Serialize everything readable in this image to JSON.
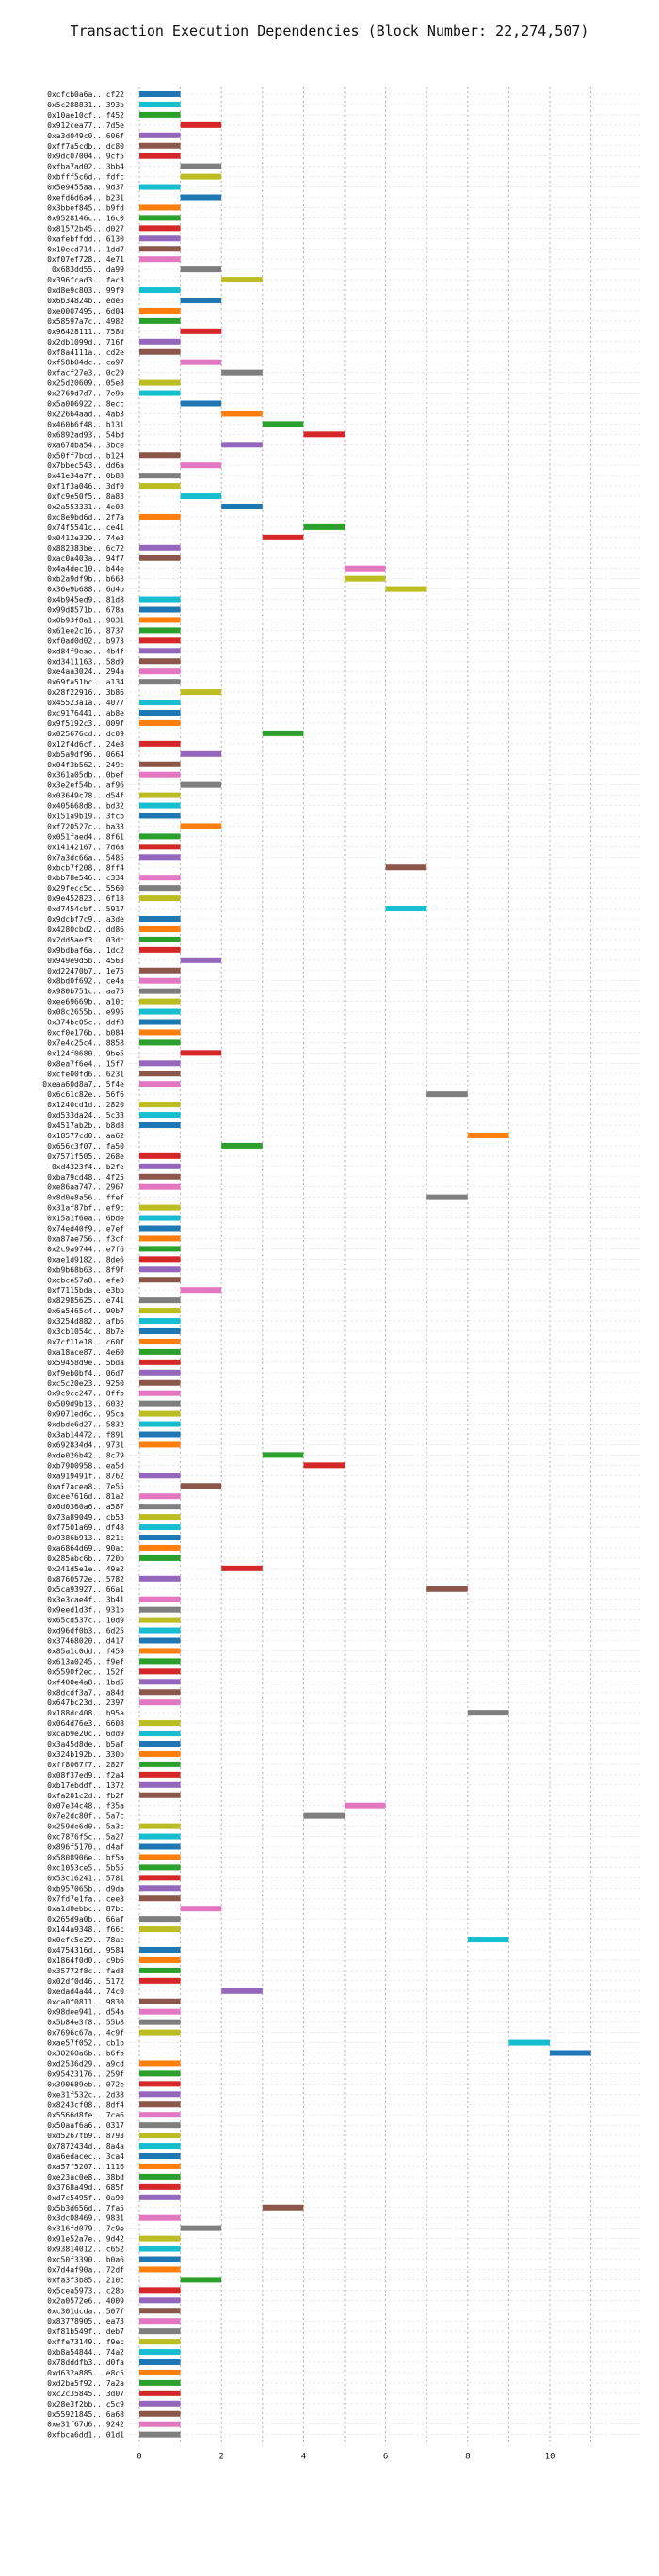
{
  "chart_data": {
    "type": "bar",
    "orientation": "horizontal",
    "title": "Transaction Execution Dependencies (Block Number: 22,274,507)",
    "xlabel": "",
    "ylabel": "",
    "xlim": [
      0,
      12
    ],
    "xticks": [
      0,
      2,
      4,
      6,
      8,
      10
    ],
    "grid": "vertical-dashed",
    "bar_width": 1,
    "palette": [
      "#1f77b4",
      "#ff7f0e",
      "#2ca02c",
      "#d62728",
      "#9467bd",
      "#8c564b",
      "#e377c2",
      "#7f7f7f",
      "#bcbd22",
      "#17becf"
    ],
    "labels": [
      "0xcfcb0a6a...cf22",
      "0x5c288831...393b",
      "0x10ae10cf...f452",
      "0x912cea77...7d5e",
      "0xa3d049c0...606f",
      "0xff7a5cdb...dc80",
      "0x9dc07004...9cf5",
      "0xfba7ad02...3bb4",
      "0xbfff5c6d...fdfc",
      "0x5e9455aa...9d37",
      "0xefd6d6a4...b231",
      "0x3bbef845...b9fd",
      "0x9528146c...16c0",
      "0x81572b45...d027",
      "0xafebffdd...6130",
      "0x10ecd714...1dd7",
      "0xf07ef728...4e71",
      "0x683dd55...da99",
      "0x396fcad3...fac3",
      "0xd8e9c803...99f9",
      "0x6b34824b...ede5",
      "0xe0007495...6d04",
      "0x58597a7c...4982",
      "0x96428111...758d",
      "0x2db1099d...716f",
      "0xf8a4111a...cd2e",
      "0xf58b04dc...ca97",
      "0xfacf27e3...0c29",
      "0x25d20609...05e8",
      "0x2769d7d7...7e9b",
      "0x5a006922...8ecc",
      "0x22664aad...4ab3",
      "0x460b6f48...b131",
      "0x6892ad93...54bd",
      "0xa67dba54...3bce",
      "0x50ff7bcd...b124",
      "0x7bbec543...dd6a",
      "0x41e34a7f...0b88",
      "0xf1f3a046...3df0",
      "0xfc9e50f5...8a83",
      "0x2a553331...4e03",
      "0xc8e9bd6d...2f7a",
      "0x74f5541c...ce41",
      "0x0412e329...74e3",
      "0x882383be...6c72",
      "0xac0a403a...94f7",
      "0x4a4dec10...b44e",
      "0xb2a9df9b...b663",
      "0x30e9b688...6d4b",
      "0x4b945ed9...81d8",
      "0x99d8571b...678a",
      "0x0b93f8a1...9031",
      "0x61ee2c16...8737",
      "0xf0ad0d02...b973",
      "0xd84f9eae...4b4f",
      "0xd3411163...58d9",
      "0xe4aa3024...294a",
      "0x69fa51bc...a134",
      "0x28f22916...3b86",
      "0x45523a1a...4077",
      "0xc9176441...ab8e",
      "0x9f5192c3...009f",
      "0x025676cd...dc09",
      "0x12f4d6cf...24e8",
      "0xb5a9df96...0664",
      "0x04f3b562...249c",
      "0x361a05db...0bef",
      "0x3e2ef54b...af96",
      "0x03649c78...d54f",
      "0x405668d8...bd32",
      "0x151a9b19...3fcb",
      "0xf720527c...ba33",
      "0x051faed4...8f61",
      "0x14142167...7d6a",
      "0x7a3dc66a...5485",
      "0xbcb7f208...8ff4",
      "0xbb78e546...c334",
      "0x29fecc5c...5560",
      "0x9e452823...6f18",
      "0xd7454cbf...5917",
      "0x9dcbf7c9...a3de",
      "0x4280cbd2...dd86",
      "0x2dd5aef3...03dc",
      "0x9bdbaf6a...1dc2",
      "0x949e9d5b...4563",
      "0xd22470b7...1e75",
      "0x8bd0f692...ce4a",
      "0x980b751c...aa75",
      "0xee69669b...a10c",
      "0x08c2655b...e995",
      "0x374bc05c...ddf8",
      "0xcf0e176b...b084",
      "0x7e4c25c4...8858",
      "0x124f0680...9be5",
      "0x8ea7f6e4...15f7",
      "0xcfe00fd6...6231",
      "0xeaa60d8a7...5f4e",
      "0x6c61c82e...56f6",
      "0x1240cd1d...2820",
      "0xd533da24...5c33",
      "0x4517ab2b...b8d8",
      "0x18577cd0...aa62",
      "0x656c3f07...fa50",
      "0x7571f505...268e",
      "0xd4323f4...b2fe",
      "0xba79cd48...4f25",
      "0xe86aa747...2967",
      "0x8d0e8a56...ffef",
      "0x31af87bf...ef9c",
      "0x15a1f6ea...6bde",
      "0x74ed40f9...e7ef",
      "0xa87ae756...f3cf",
      "0x2c9a9744...e7f6",
      "0xae1d9182...8de6",
      "0xb9b68b63...8f9f",
      "0xcbce57a8...efe0",
      "0xf7115bda...e3bb",
      "0x82985625...e741",
      "0x6a5465c4...90b7",
      "0x3254d882...afb6",
      "0x3cb1054c...8b7e",
      "0x7cf11e18...c60f",
      "0xa18ace87...4e60",
      "0x59458d9e...5bda",
      "0xf9eb0bf4...06d7",
      "0xc5c20e23...9250",
      "0x9c9cc247...8ffb",
      "0x509d9b13...6032",
      "0x9071ed6c...95ca",
      "0xdbde6d27...5832",
      "0x3ab14472...f891",
      "0x692834d4...9731",
      "0xde026b42...8c79",
      "0xb7900958...ea5d",
      "0xa919491f...8762",
      "0xaf7acea8...7e55",
      "0xcee7616d...81a2",
      "0x0d0360a6...a587",
      "0x73a89049...cb53",
      "0xf7501a69...df48",
      "0x9386b913...821c",
      "0xa6864d69...90ac",
      "0x285abc6b...720b",
      "0x241d5e1e...49a2",
      "0x8760572e...5782",
      "0x5ca93927...66a1",
      "0x3e3cae4f...3b41",
      "0x9eed1d3f...931b",
      "0x65cd537c...10d9",
      "0xd96df0b3...6d25",
      "0x37468020...d417",
      "0x85a1c0dd...f459",
      "0x613a0245...f9ef",
      "0x5590f2ec...152f",
      "0xf400e4a8...1bd5",
      "0x8dcdf3a7...a84d",
      "0x647bc23d...2397",
      "0x188dc408...b95a",
      "0x064d76e3...6608",
      "0xcab9e20c...6dd9",
      "0x3a45d8de...b5af",
      "0x324b192b...330b",
      "0xff8067f7...2827",
      "0x08f37ed9...f2a4",
      "0xb17ebddf...1372",
      "0xfa201c2d...fb2f",
      "0x07e34c48...f35a",
      "0x7e2dc80f...5a7c",
      "0x259de6d0...5a3c",
      "0xc7876f5c...5a27",
      "0x896f5170...d4af",
      "0x5808906e...bf5a",
      "0xc1053ce5...5b55",
      "0x53c16241...5781",
      "0xb957065b...d9da",
      "0x7fd7e1fa...cee3",
      "0xa1d0ebbc...87bc",
      "0x265d9a0b...66af",
      "0x144a9348...f66c",
      "0x0efc5e29...78ac",
      "0x4754316d...9584",
      "0x1864f0d0...c9b6",
      "0x35772f8c...fad8",
      "0x02df0d46...5172",
      "0xedad4a44...74c0",
      "0xca0f0811...9830",
      "0x98dee941...d54a",
      "0x5b84e3f8...55b8",
      "0x7696c67a...4c9f",
      "0xae57f052...cb1b",
      "0x30260a6b...b6fb",
      "0xd2536d29...a9cd",
      "0x95423176...259f",
      "0x390689eb...072e",
      "0xe31f532c...2d38",
      "0x8243cf08...8df4",
      "0x5566d8fe...7ca6",
      "0x50aaf6a6...0317",
      "0xd5267fb9...8793",
      "0x7872434d...8a4a",
      "0xa6edacec...3ca4",
      "0xa57f5207...1116",
      "0xe23ac0e8...38bd",
      "0x3768a49d...685f",
      "0xd7c5495f...0a90",
      "0x5b3d656d...7fa5",
      "0x3dc08469...9831",
      "0x316fd079...7c9e",
      "0x91e52a7e...9d42",
      "0x93814012...c652",
      "0xc50f3390...b0a6",
      "0x7d4af90a...72df",
      "0xfa3f3b85...210c",
      "0x5cea5973...c28b",
      "0x2a0572e6...4009",
      "0xc301dcda...507f",
      "0x83778905...ea73",
      "0xf81b549f...deb7",
      "0xffe73149...f9ec",
      "0xb8a54844...74a2",
      "0x78dddfb3...d0fa",
      "0xd632a885...e8c5",
      "0xd2ba5f92...7a2a",
      "0xc2c35845...3d07",
      "0x28e3f2bb...c5c9",
      "0x55921845...6a68",
      "0xe31f67d6...9242",
      "0xfbca6dd1...01d1"
    ],
    "start": [
      0,
      0,
      0,
      1,
      0,
      0,
      0,
      1,
      1,
      0,
      1,
      0,
      0,
      0,
      0,
      0,
      0,
      1,
      2,
      0,
      1,
      0,
      0,
      1,
      0,
      0,
      1,
      2,
      0,
      0,
      1,
      2,
      3,
      4,
      2,
      0,
      1,
      0,
      0,
      1,
      2,
      0,
      4,
      3,
      0,
      0,
      5,
      5,
      6,
      0,
      0,
      0,
      0,
      0,
      0,
      0,
      0,
      0,
      1,
      0,
      0,
      0,
      3,
      0,
      1,
      0,
      0,
      1,
      0,
      0,
      0,
      1,
      0,
      0,
      0,
      6,
      0,
      0,
      0,
      6,
      0,
      0,
      0,
      0,
      1,
      0,
      0,
      0,
      0,
      0,
      0,
      0,
      0,
      1,
      0,
      0,
      0,
      7,
      0,
      0,
      0,
      8,
      2,
      0,
      0,
      0,
      0,
      7,
      0,
      0,
      0,
      0,
      0,
      0,
      0,
      0,
      1,
      0,
      0,
      0,
      0,
      0,
      0,
      0,
      0,
      0,
      0,
      0,
      0,
      0,
      0,
      0,
      3,
      4,
      0,
      1,
      0,
      0,
      0,
      0,
      0,
      0,
      0,
      2,
      0,
      7,
      0,
      0,
      0,
      0,
      0,
      0,
      0,
      0,
      0,
      0,
      0,
      8,
      0,
      0,
      0,
      0,
      0,
      0,
      0,
      0,
      5,
      4,
      0,
      0,
      0,
      0,
      0,
      0,
      0,
      0,
      1,
      0,
      0,
      8,
      0,
      0,
      0,
      0,
      2,
      0,
      0,
      0,
      0,
      9,
      10,
      0,
      0,
      0,
      0,
      0,
      0,
      0,
      0,
      0,
      0,
      0,
      0,
      0,
      0,
      3,
      0,
      1,
      0,
      0,
      0,
      0,
      1,
      0,
      0,
      0,
      0,
      0,
      0
    ],
    "colors": [
      0,
      9,
      2,
      3,
      4,
      5,
      3,
      7,
      8,
      9,
      0,
      1,
      2,
      3,
      4,
      5,
      6,
      7,
      8,
      9,
      0,
      1,
      2,
      3,
      4,
      5,
      6,
      7,
      8,
      9,
      0,
      1,
      2,
      3,
      4,
      5,
      6,
      7,
      8,
      9,
      0,
      1,
      2,
      3,
      4,
      5,
      6,
      8,
      8,
      9,
      0,
      1,
      2,
      3,
      4,
      5,
      6,
      7,
      8,
      9,
      0,
      1,
      2,
      3,
      4,
      5,
      6,
      7,
      8,
      9,
      0,
      1,
      2,
      3,
      4,
      5,
      6,
      7,
      8,
      9,
      0,
      1,
      2,
      3,
      4,
      5,
      6,
      7,
      8,
      9,
      0,
      1,
      2,
      3,
      4,
      5,
      6,
      7,
      8,
      9,
      0,
      1,
      2,
      3,
      4,
      5,
      6,
      7,
      8,
      9,
      0,
      1,
      2,
      3,
      4,
      5,
      6,
      7,
      8,
      9,
      0,
      1,
      2,
      3,
      4,
      5,
      6,
      7,
      8,
      9,
      0,
      1,
      2,
      3,
      4,
      5,
      6,
      7,
      8,
      9,
      0,
      1,
      2,
      3,
      4,
      5,
      6,
      7,
      8,
      9,
      0,
      1,
      2,
      3,
      4,
      5,
      6,
      7,
      8,
      9,
      0,
      1,
      2,
      3,
      4,
      5,
      6,
      7,
      8,
      9,
      0,
      1,
      2,
      3,
      4,
      5,
      6,
      7,
      8,
      9,
      0,
      1,
      2,
      3,
      4,
      5,
      6,
      7,
      8,
      9,
      0,
      1,
      2,
      3,
      4,
      5,
      6,
      7,
      8,
      9,
      0,
      1,
      2,
      3,
      4,
      5,
      6,
      7,
      8,
      9,
      0,
      1,
      2,
      3,
      4,
      5,
      6,
      7,
      8,
      9,
      0,
      1,
      2,
      3,
      4,
      5,
      6,
      7
    ]
  }
}
